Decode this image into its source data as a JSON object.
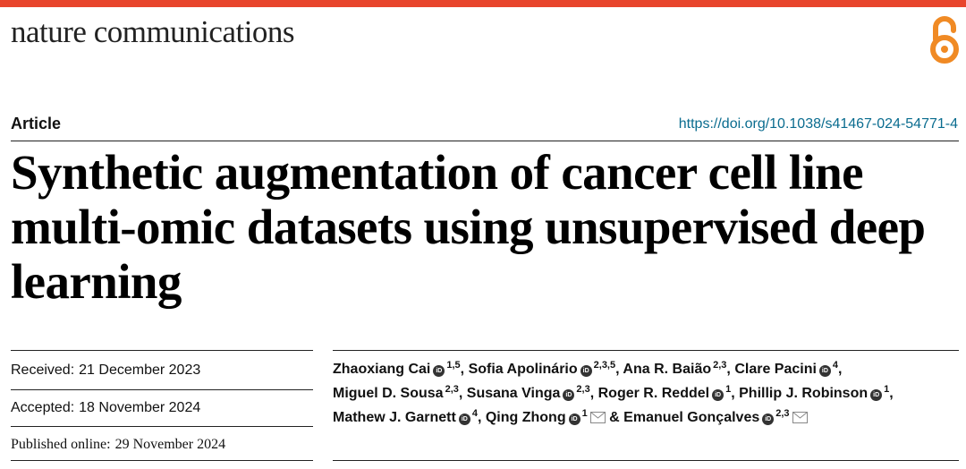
{
  "header": {
    "journal_name": "nature communications",
    "brand_color": "#e8452c",
    "open_access_icon": "open-access-lock-icon"
  },
  "article": {
    "type": "Article",
    "doi": "https://doi.org/10.1038/s41467-024-54771-4",
    "title": "Synthetic augmentation of cancer cell line multi-omic datasets using unsupervised deep learning"
  },
  "dates": {
    "received_label": "Received:",
    "received": "21 December 2023",
    "accepted_label": "Accepted:",
    "accepted": "18 November 2024",
    "published_label": "Published online:",
    "published": "29 November 2024"
  },
  "authors": [
    {
      "name": "Zhaoxiang Cai",
      "orcid": true,
      "affiliations": "1,5",
      "corresponding": false,
      "sep": ","
    },
    {
      "name": "Sofia Apolinário",
      "orcid": true,
      "affiliations": "2,3,5",
      "corresponding": false,
      "sep": ","
    },
    {
      "name": "Ana R. Baião",
      "orcid": false,
      "affiliations": "2,3",
      "corresponding": false,
      "sep": ","
    },
    {
      "name": "Clare Pacini",
      "orcid": true,
      "affiliations": "4",
      "corresponding": false,
      "sep": ","
    },
    {
      "name": "Miguel D. Sousa",
      "orcid": false,
      "affiliations": "2,3",
      "corresponding": false,
      "sep": ","
    },
    {
      "name": "Susana Vinga",
      "orcid": true,
      "affiliations": "2,3",
      "corresponding": false,
      "sep": ","
    },
    {
      "name": "Roger R. Reddel",
      "orcid": true,
      "affiliations": "1",
      "corresponding": false,
      "sep": ","
    },
    {
      "name": "Phillip J. Robinson",
      "orcid": true,
      "affiliations": "1",
      "corresponding": false,
      "sep": ","
    },
    {
      "name": "Mathew J. Garnett",
      "orcid": true,
      "affiliations": "4",
      "corresponding": false,
      "sep": ","
    },
    {
      "name": "Qing Zhong",
      "orcid": true,
      "affiliations": "1",
      "corresponding": true,
      "sep": ""
    },
    {
      "name": "Emanuel Gonçalves",
      "orcid": true,
      "affiliations": "2,3",
      "corresponding": true,
      "sep": ""
    }
  ],
  "author_conjunction": "&"
}
